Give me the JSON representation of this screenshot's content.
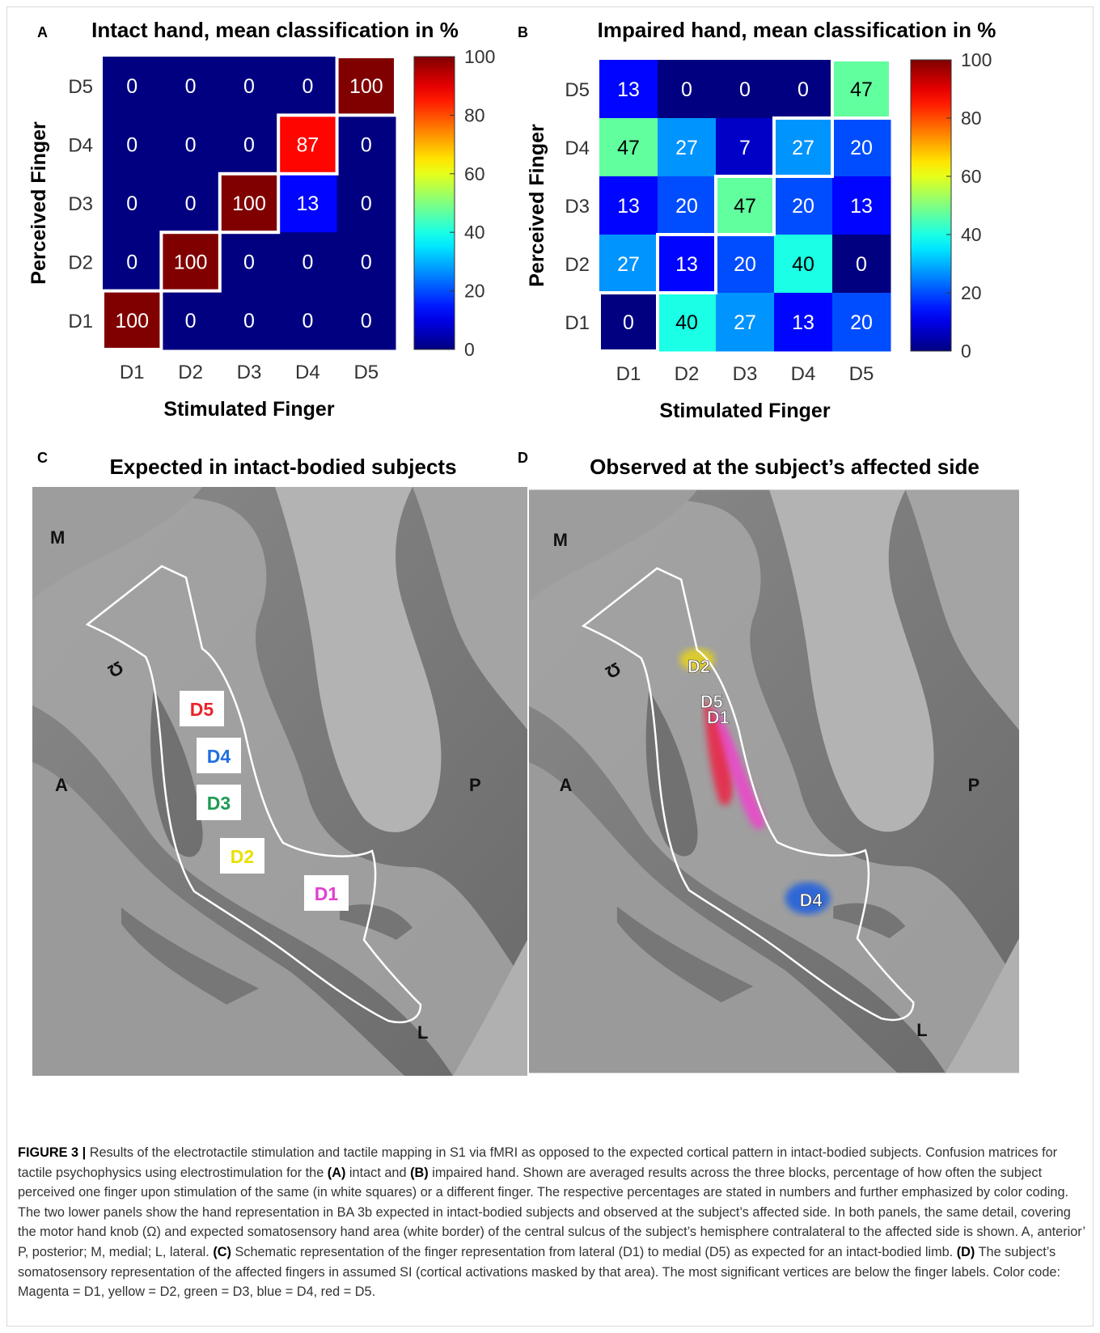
{
  "panels": {
    "A": {
      "letter": "A",
      "title": "Intact hand, mean classification in %",
      "xlabel": "Stimulated Finger",
      "ylabel": "Perceived Finger"
    },
    "B": {
      "letter": "B",
      "title": "Impaired hand, mean classification in %",
      "xlabel": "Stimulated Finger",
      "ylabel": "Perceived Finger"
    },
    "C": {
      "letter": "C",
      "title": "Expected in intact-bodied subjects",
      "orient": {
        "M": "M",
        "A": "A",
        "P": "P",
        "L": "L",
        "knob": "Ω"
      },
      "finger_labels": [
        {
          "text": "D5",
          "color": "#e8242a"
        },
        {
          "text": "D4",
          "color": "#1f6fe0"
        },
        {
          "text": "D3",
          "color": "#1e9b52"
        },
        {
          "text": "D2",
          "color": "#e8e000"
        },
        {
          "text": "D1",
          "color": "#e040d0"
        }
      ]
    },
    "D": {
      "letter": "D",
      "title": "Observed at the subject’s affected side",
      "orient": {
        "M": "M",
        "A": "A",
        "P": "P",
        "L": "L",
        "knob": "Ω"
      },
      "activation_labels": [
        "D2",
        "D5",
        "D1",
        "D4"
      ],
      "activation_colors": {
        "D1": "#ee44cc",
        "D2": "#e6d21a",
        "D4": "#1f5fe0",
        "D5": "#ee2244"
      }
    }
  },
  "chart_data": [
    {
      "type": "heatmap",
      "title": "Intact hand, mean classification in %",
      "xlabel": "Stimulated Finger",
      "ylabel": "Perceived Finger",
      "x_categories": [
        "D1",
        "D2",
        "D3",
        "D4",
        "D5"
      ],
      "y_categories": [
        "D5",
        "D4",
        "D3",
        "D2",
        "D1"
      ],
      "values": [
        [
          0,
          0,
          0,
          0,
          100
        ],
        [
          0,
          0,
          0,
          87,
          0
        ],
        [
          0,
          0,
          100,
          13,
          0
        ],
        [
          0,
          100,
          0,
          0,
          0
        ],
        [
          100,
          0,
          0,
          0,
          0
        ]
      ],
      "colorbar": {
        "min": 0,
        "max": 100,
        "ticks": [
          0,
          20,
          40,
          60,
          80,
          100
        ],
        "colormap": "jet"
      },
      "highlight": "diagonal"
    },
    {
      "type": "heatmap",
      "title": "Impaired hand, mean classification in %",
      "xlabel": "Stimulated Finger",
      "ylabel": "Perceived Finger",
      "x_categories": [
        "D1",
        "D2",
        "D3",
        "D4",
        "D5"
      ],
      "y_categories": [
        "D5",
        "D4",
        "D3",
        "D2",
        "D1"
      ],
      "values": [
        [
          13,
          0,
          0,
          0,
          47
        ],
        [
          47,
          27,
          7,
          27,
          20
        ],
        [
          13,
          20,
          47,
          20,
          13
        ],
        [
          27,
          13,
          20,
          40,
          0
        ],
        [
          0,
          40,
          27,
          13,
          20
        ]
      ],
      "colorbar": {
        "min": 0,
        "max": 100,
        "ticks": [
          0,
          20,
          40,
          60,
          80,
          100
        ],
        "colormap": "jet"
      },
      "highlight": "diagonal"
    }
  ],
  "caption": {
    "label": "FIGURE 3 |",
    "segments": [
      {
        "t": " Results of the electrotactile stimulation and tactile mapping in S1 via fMRI as opposed to the expected cortical pattern in intact-bodied subjects. Confusion matrices for tactile psychophysics using electrostimulation for the "
      },
      {
        "t": "(A)",
        "b": true
      },
      {
        "t": " intact and "
      },
      {
        "t": "(B)",
        "b": true
      },
      {
        "t": " impaired hand. Shown are averaged results across the three blocks, percentage of how often the subject perceived one finger upon stimulation of the same (in white squares) or a different finger. The respective percentages are stated in numbers and further emphasized by color coding. The two lower panels show the hand representation in BA 3b expected in intact-bodied subjects and observed at the subject’s affected side. In both panels, the same detail, covering the motor hand knob (Ω) and expected somatosensory hand area (white border) of the central sulcus of the subject’s hemisphere contralateral to the affected side is shown. A, anterior’ P, posterior; M, medial; L, lateral. "
      },
      {
        "t": "(C)",
        "b": true
      },
      {
        "t": " Schematic representation of the finger representation from lateral (D1) to medial (D5) as expected for an intact-bodied limb. "
      },
      {
        "t": "(D)",
        "b": true
      },
      {
        "t": " The subject’s somatosensory representation of the affected fingers in assumed SI (cortical activations masked by that area). The most significant vertices are below the finger labels. Color code: Magenta = D1, yellow = D2, green = D3, blue = D4, red = D5."
      }
    ]
  }
}
